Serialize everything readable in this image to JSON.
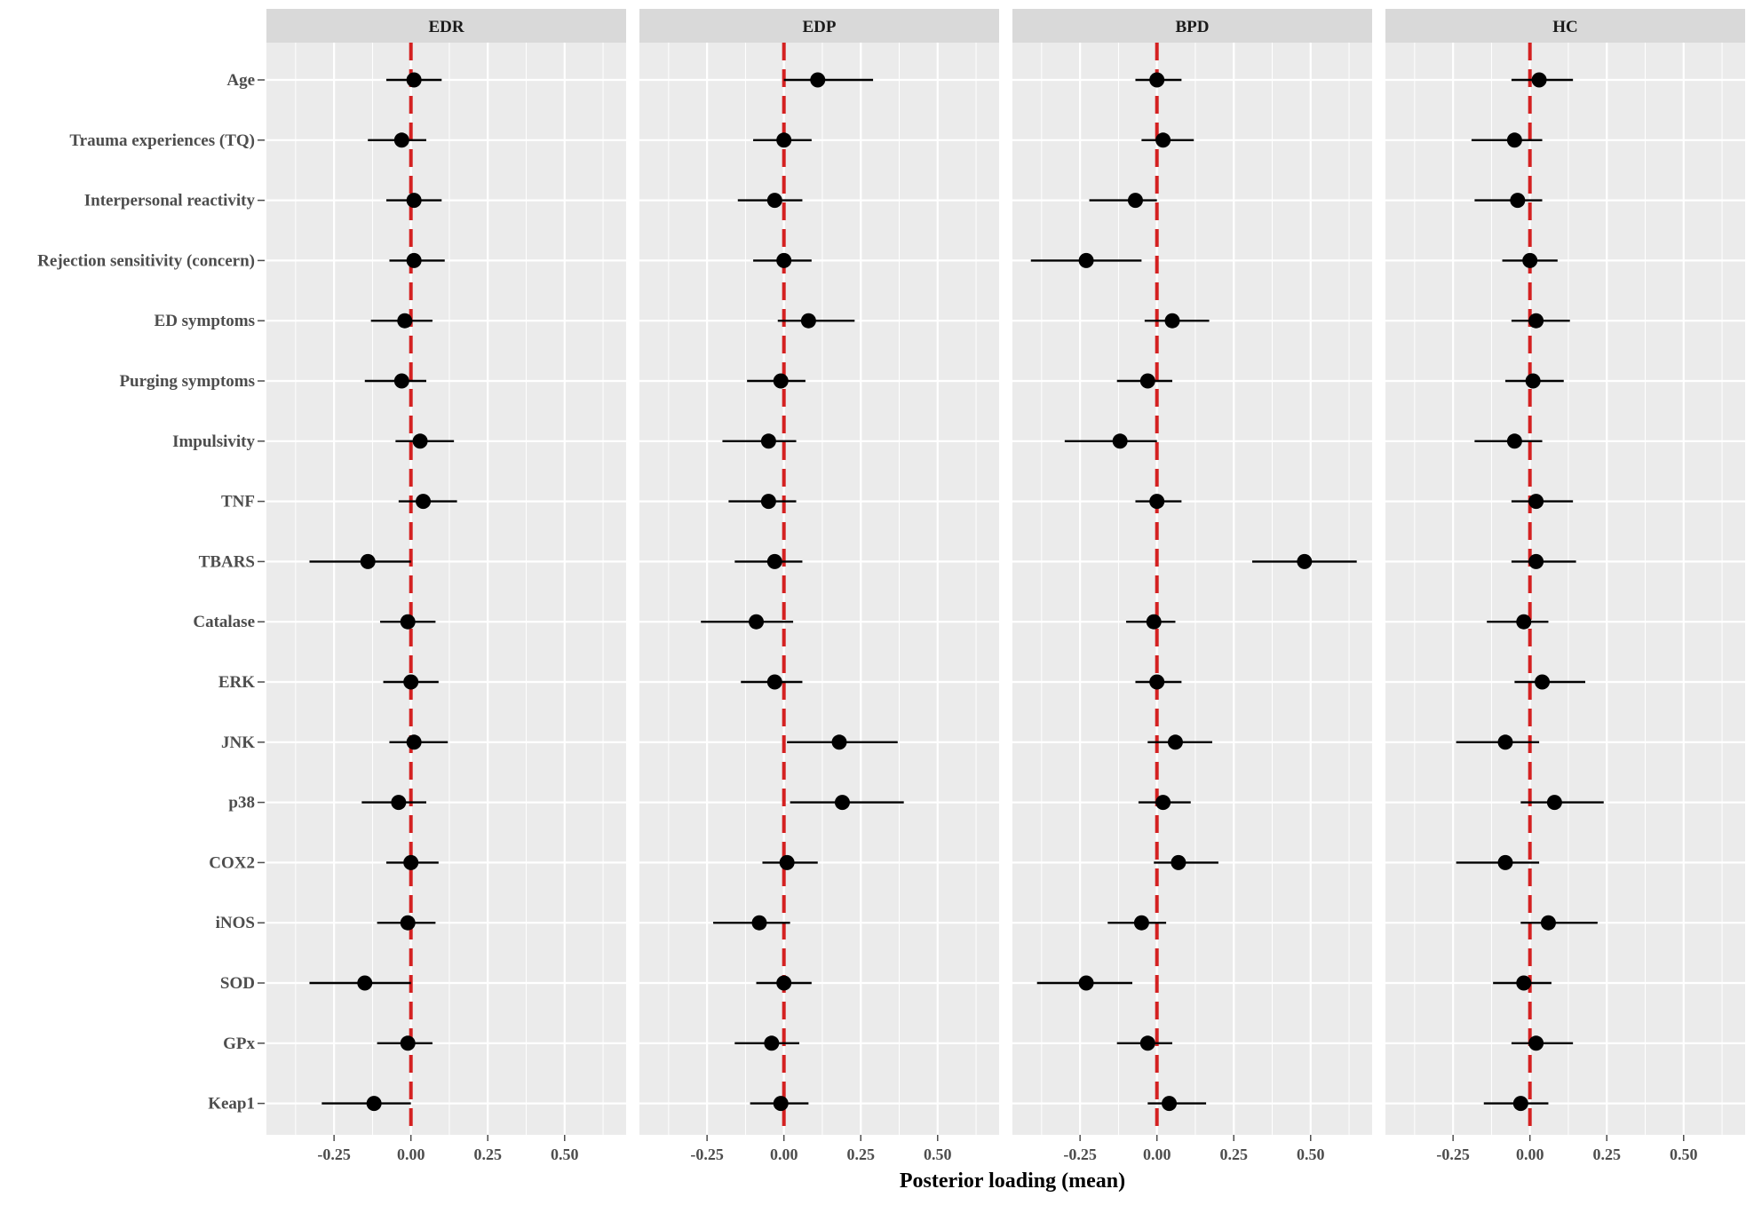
{
  "chart_data": {
    "type": "scatter",
    "subtype": "forest",
    "xlabel": "Posterior loading (mean)",
    "xlim": [
      -0.47,
      0.7
    ],
    "xticks": [
      -0.25,
      0.0,
      0.25,
      0.5
    ],
    "xtick_labels": [
      "-0.25",
      "0.00",
      "0.25",
      "0.50"
    ],
    "grid": true,
    "reference_line": {
      "x": 0,
      "color": "#d42020",
      "style": "dashed"
    },
    "point_color": "#000000",
    "panel_background": "#ebebeb",
    "variables": [
      "Age",
      "Trauma experiences (TQ)",
      "Interpersonal reactivity",
      "Rejection sensitivity (concern)",
      "ED symptoms",
      "Purging symptoms",
      "Impulsivity",
      "TNF",
      "TBARS",
      "Catalase",
      "ERK",
      "JNK",
      "p38",
      "COX2",
      "iNOS",
      "SOD",
      "GPx",
      "Keap1"
    ],
    "panels": [
      {
        "name": "EDR",
        "mean": [
          0.01,
          -0.03,
          0.01,
          0.01,
          -0.02,
          -0.03,
          0.03,
          0.04,
          -0.14,
          -0.01,
          0.0,
          0.01,
          -0.04,
          0.0,
          -0.01,
          -0.15,
          -0.01,
          -0.12
        ],
        "lower": [
          -0.08,
          -0.14,
          -0.08,
          -0.07,
          -0.13,
          -0.15,
          -0.05,
          -0.04,
          -0.33,
          -0.1,
          -0.09,
          -0.07,
          -0.16,
          -0.08,
          -0.11,
          -0.33,
          -0.11,
          -0.29
        ],
        "upper": [
          0.1,
          0.05,
          0.1,
          0.11,
          0.07,
          0.05,
          0.14,
          0.15,
          0.0,
          0.08,
          0.09,
          0.12,
          0.05,
          0.09,
          0.08,
          0.0,
          0.07,
          0.0
        ]
      },
      {
        "name": "EDP",
        "mean": [
          0.11,
          0.0,
          -0.03,
          0.0,
          0.08,
          -0.01,
          -0.05,
          -0.05,
          -0.03,
          -0.09,
          -0.03,
          0.18,
          0.19,
          0.01,
          -0.08,
          0.0,
          -0.04,
          -0.01
        ],
        "lower": [
          0.0,
          -0.1,
          -0.15,
          -0.1,
          -0.02,
          -0.12,
          -0.2,
          -0.18,
          -0.16,
          -0.27,
          -0.14,
          0.01,
          0.02,
          -0.07,
          -0.23,
          -0.09,
          -0.16,
          -0.11
        ],
        "upper": [
          0.29,
          0.09,
          0.06,
          0.09,
          0.23,
          0.07,
          0.04,
          0.04,
          0.06,
          0.03,
          0.06,
          0.37,
          0.39,
          0.11,
          0.02,
          0.09,
          0.05,
          0.08
        ]
      },
      {
        "name": "BPD",
        "mean": [
          0.0,
          0.02,
          -0.07,
          -0.23,
          0.05,
          -0.03,
          -0.12,
          0.0,
          0.48,
          -0.01,
          0.0,
          0.06,
          0.02,
          0.07,
          -0.05,
          -0.23,
          -0.03,
          0.04
        ],
        "lower": [
          -0.07,
          -0.05,
          -0.22,
          -0.41,
          -0.04,
          -0.13,
          -0.3,
          -0.07,
          0.31,
          -0.1,
          -0.07,
          -0.03,
          -0.06,
          -0.01,
          -0.16,
          -0.39,
          -0.13,
          -0.03
        ],
        "upper": [
          0.08,
          0.12,
          0.0,
          -0.05,
          0.17,
          0.05,
          0.0,
          0.08,
          0.65,
          0.06,
          0.08,
          0.18,
          0.11,
          0.2,
          0.03,
          -0.08,
          0.05,
          0.16
        ]
      },
      {
        "name": "HC",
        "mean": [
          0.03,
          -0.05,
          -0.04,
          0.0,
          0.02,
          0.01,
          -0.05,
          0.02,
          0.02,
          -0.02,
          0.04,
          -0.08,
          0.08,
          -0.08,
          0.06,
          -0.02,
          0.02,
          -0.03
        ],
        "lower": [
          -0.06,
          -0.19,
          -0.18,
          -0.09,
          -0.06,
          -0.08,
          -0.18,
          -0.06,
          -0.06,
          -0.14,
          -0.05,
          -0.24,
          -0.03,
          -0.24,
          -0.03,
          -0.12,
          -0.06,
          -0.15
        ],
        "upper": [
          0.14,
          0.04,
          0.04,
          0.09,
          0.13,
          0.11,
          0.04,
          0.14,
          0.15,
          0.06,
          0.18,
          0.03,
          0.24,
          0.03,
          0.22,
          0.07,
          0.14,
          0.06
        ]
      }
    ]
  }
}
